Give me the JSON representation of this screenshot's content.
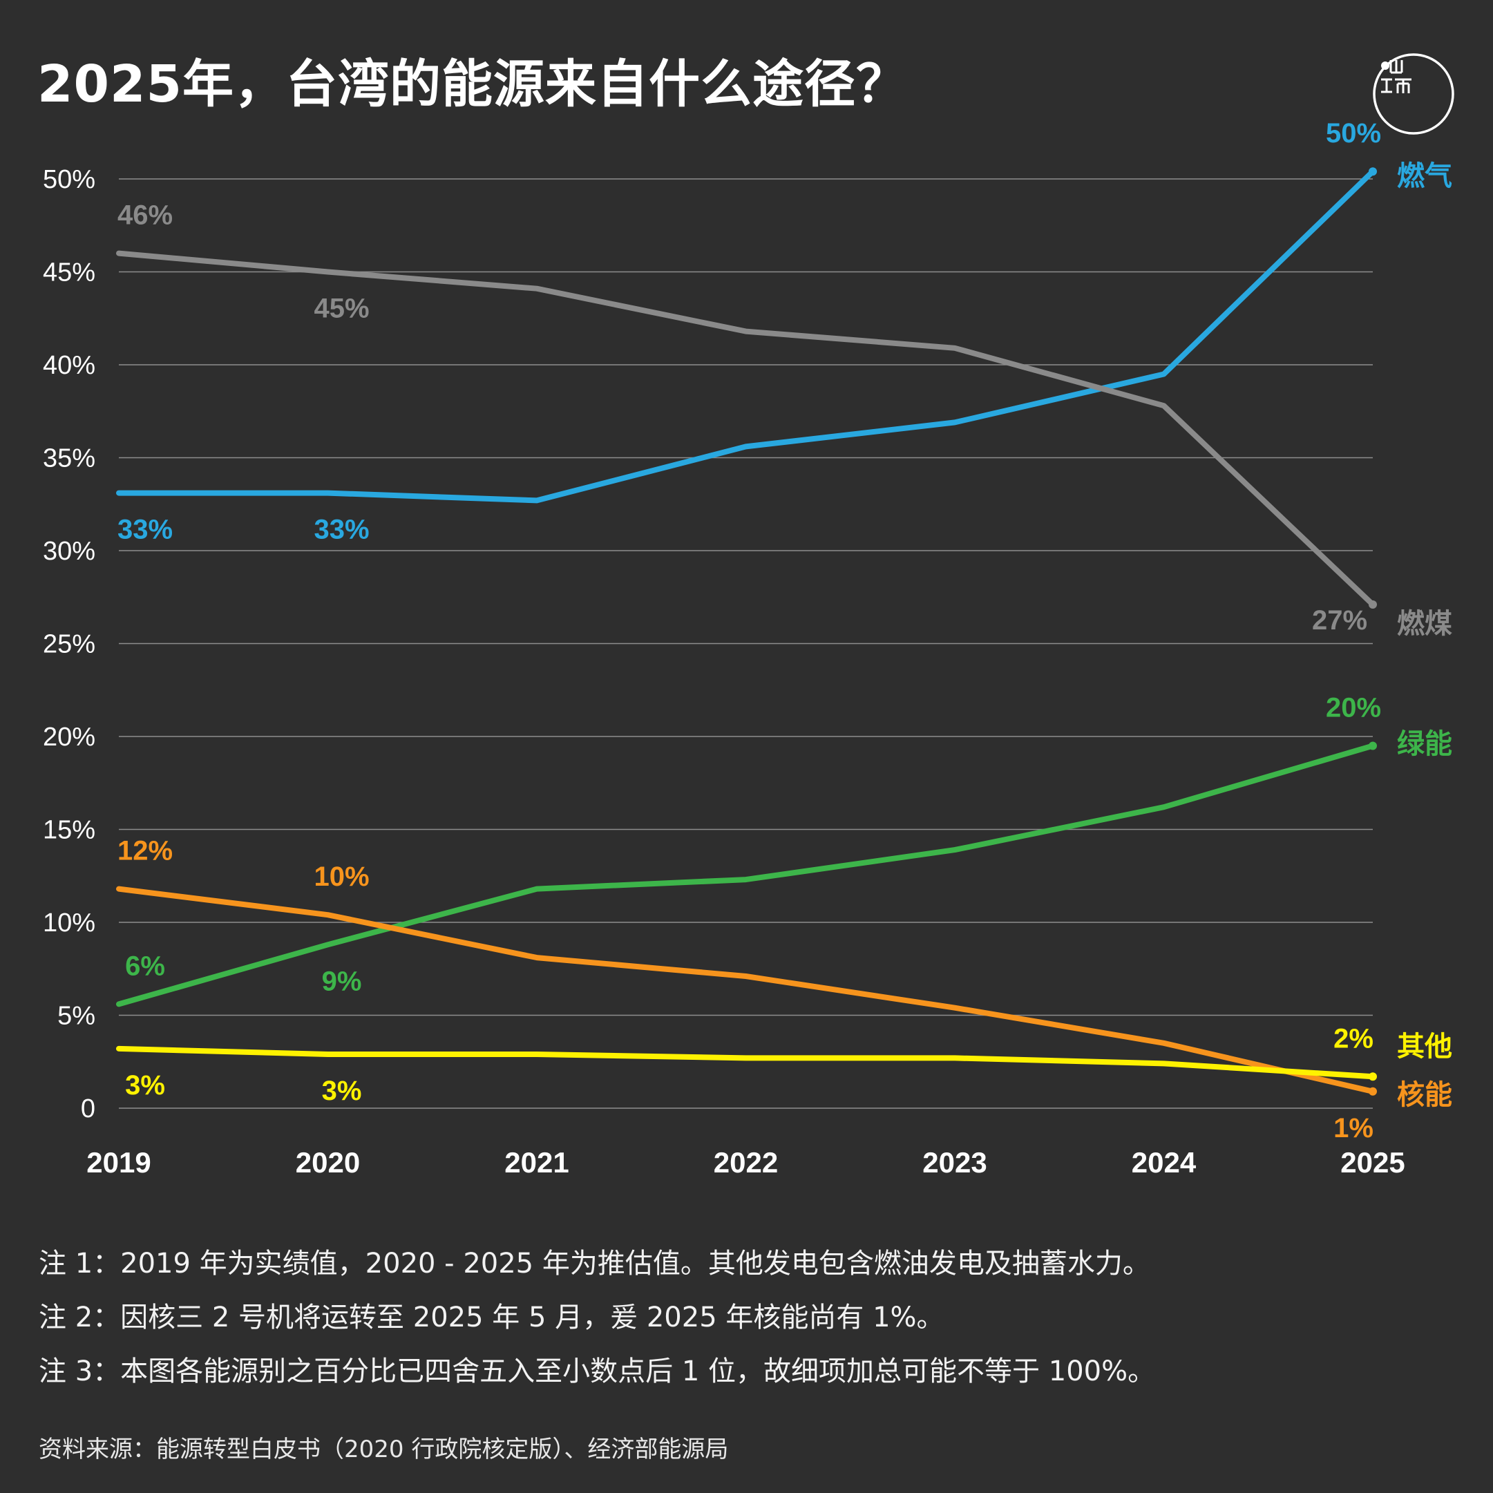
{
  "title": "2025年，台湾的能源来自什么途径？",
  "logo": {
    "name": "initium-logo-icon",
    "color": "#ffffff"
  },
  "chart_data": {
    "type": "line",
    "title": "2025年，台湾的能源来自什么途径？",
    "xlabel": "",
    "ylabel": "",
    "x": [
      "2019",
      "2020",
      "2021",
      "2022",
      "2023",
      "2024",
      "2025"
    ],
    "ylim": [
      0,
      50
    ],
    "yticks": [
      0,
      5,
      10,
      15,
      20,
      25,
      30,
      35,
      40,
      45,
      50
    ],
    "ytick_labels": [
      "0",
      "5%",
      "10%",
      "15%",
      "20%",
      "25%",
      "30%",
      "35%",
      "40%",
      "45%",
      "50%"
    ],
    "grid": true,
    "legend": "right-end labels",
    "series": [
      {
        "name": "燃气",
        "color": "#29a8e0",
        "values": [
          33.1,
          33.1,
          32.7,
          35.6,
          36.9,
          39.5,
          50.4
        ],
        "labels": [
          {
            "i": 0,
            "text": "33%",
            "pos": "below"
          },
          {
            "i": 1,
            "text": "33%",
            "pos": "below"
          },
          {
            "i": 6,
            "text": "50%",
            "pos": "above"
          }
        ]
      },
      {
        "name": "燃煤",
        "color": "#8a8a8a",
        "values": [
          46.0,
          45.0,
          44.1,
          41.8,
          40.9,
          37.8,
          27.1
        ],
        "labels": [
          {
            "i": 0,
            "text": "46%",
            "pos": "above"
          },
          {
            "i": 1,
            "text": "45%",
            "pos": "below"
          },
          {
            "i": 6,
            "text": "27%",
            "pos": "below-left"
          }
        ]
      },
      {
        "name": "绿能",
        "color": "#3db54a",
        "values": [
          5.6,
          8.8,
          11.8,
          12.3,
          13.9,
          16.2,
          19.5
        ],
        "labels": [
          {
            "i": 0,
            "text": "6%",
            "pos": "above"
          },
          {
            "i": 1,
            "text": "9%",
            "pos": "below"
          },
          {
            "i": 6,
            "text": "20%",
            "pos": "above"
          }
        ]
      },
      {
        "name": "核能",
        "color": "#f7941d",
        "values": [
          11.8,
          10.4,
          8.1,
          7.1,
          5.4,
          3.5,
          0.9
        ],
        "labels": [
          {
            "i": 0,
            "text": "12%",
            "pos": "above"
          },
          {
            "i": 1,
            "text": "10%",
            "pos": "above"
          },
          {
            "i": 6,
            "text": "1%",
            "pos": "below"
          }
        ]
      },
      {
        "name": "其他",
        "color": "#fff200",
        "values": [
          3.2,
          2.9,
          2.9,
          2.7,
          2.7,
          2.4,
          1.7
        ],
        "labels": [
          {
            "i": 0,
            "text": "3%",
            "pos": "below"
          },
          {
            "i": 1,
            "text": "3%",
            "pos": "below"
          },
          {
            "i": 6,
            "text": "2%",
            "pos": "above"
          }
        ]
      }
    ]
  },
  "notes": [
    "注 1：2019 年为实绩值，2020 - 2025 年为推估值。其他发电包含燃油发电及抽蓄水力。",
    "注 2：因核三 2 号机将运转至 2025 年 5 月，爰 2025 年核能尚有 1%。",
    "注 3：本图各能源别之百分比已四舍五入至小数点后 1 位，故细项加总可能不等于 100%。"
  ],
  "source": "资料来源：能源转型白皮书（2020 行政院核定版）、经济部能源局"
}
